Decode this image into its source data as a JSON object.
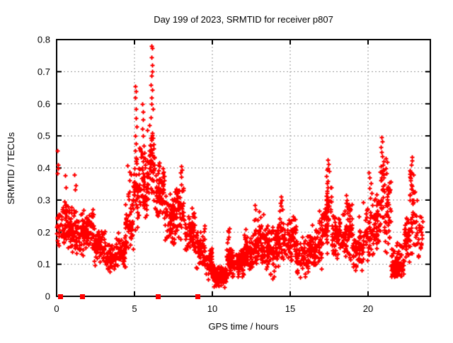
{
  "window": {
    "background": "#ffffff"
  },
  "chart_data": {
    "type": "scatter",
    "title": "Day 199 of 2023, SRMTID for receiver p807",
    "xlabel": "GPS time / hours",
    "ylabel": "SRMTID / TECUs",
    "xlim": [
      0,
      24
    ],
    "ylim": [
      0,
      0.8
    ],
    "xticks": [
      0,
      5,
      10,
      15,
      20
    ],
    "yticks": [
      0,
      0.1,
      0.2,
      0.3,
      0.4,
      0.5,
      0.6,
      0.7,
      0.8
    ],
    "grid": true,
    "legend": "none",
    "marker": {
      "glyph": "plus",
      "color": "#ff0000",
      "size": 7,
      "stroke": 2
    },
    "baseline_marker": {
      "glyph": "filled-square",
      "color": "#ff0000",
      "size": 7
    },
    "baseline_events_x": [
      0.27,
      1.68,
      6.5,
      9.05
    ],
    "grid_color": "#9e9e9e",
    "axis_color": "#000000",
    "outlier_points": [
      [
        0.05,
        0.455
      ],
      [
        0.07,
        0.41
      ],
      [
        0.1,
        0.398
      ],
      [
        0.06,
        0.383
      ],
      [
        0.55,
        0.377
      ],
      [
        0.57,
        0.34
      ],
      [
        1.15,
        0.38
      ],
      [
        1.22,
        0.345
      ],
      [
        1.19,
        0.333
      ],
      [
        5.05,
        0.655
      ],
      [
        5.08,
        0.64
      ],
      [
        5.04,
        0.62
      ],
      [
        5.1,
        0.585
      ],
      [
        5.07,
        0.555
      ],
      [
        5.12,
        0.53
      ],
      [
        5.06,
        0.5
      ],
      [
        5.11,
        0.475
      ],
      [
        5.04,
        0.455
      ],
      [
        5.09,
        0.432
      ],
      [
        5.5,
        0.6
      ],
      [
        5.53,
        0.575
      ],
      [
        5.56,
        0.55
      ],
      [
        5.5,
        0.523
      ],
      [
        5.54,
        0.5
      ],
      [
        5.57,
        0.47
      ],
      [
        5.51,
        0.444
      ],
      [
        5.55,
        0.42
      ],
      [
        6.1,
        0.78
      ],
      [
        6.13,
        0.773
      ],
      [
        6.08,
        0.745
      ],
      [
        6.12,
        0.72
      ],
      [
        6.15,
        0.7
      ],
      [
        6.09,
        0.688
      ],
      [
        6.05,
        0.66
      ],
      [
        6.14,
        0.643
      ],
      [
        6.07,
        0.62
      ],
      [
        6.11,
        0.6
      ],
      [
        6.16,
        0.583
      ],
      [
        6.06,
        0.558
      ],
      [
        7.98,
        0.405
      ],
      [
        8.04,
        0.394
      ],
      [
        7.94,
        0.385
      ],
      [
        8.01,
        0.373
      ],
      [
        12.72,
        0.285
      ],
      [
        12.78,
        0.27
      ],
      [
        13.0,
        0.265
      ],
      [
        13.25,
        0.255
      ],
      [
        14.4,
        0.31
      ],
      [
        14.45,
        0.3
      ],
      [
        14.38,
        0.292
      ],
      [
        14.43,
        0.282
      ],
      [
        14.48,
        0.27
      ],
      [
        15.18,
        0.25
      ],
      [
        15.22,
        0.24
      ],
      [
        17.42,
        0.425
      ],
      [
        17.46,
        0.413
      ],
      [
        17.39,
        0.4
      ],
      [
        17.49,
        0.39
      ],
      [
        18.6,
        0.315
      ],
      [
        18.65,
        0.3
      ],
      [
        18.57,
        0.29
      ],
      [
        19.42,
        0.25
      ],
      [
        20.05,
        0.385
      ],
      [
        20.11,
        0.37
      ],
      [
        20.16,
        0.353
      ],
      [
        20.08,
        0.338
      ],
      [
        20.21,
        0.322
      ],
      [
        20.13,
        0.307
      ],
      [
        20.85,
        0.495
      ],
      [
        20.89,
        0.483
      ],
      [
        20.82,
        0.465
      ],
      [
        20.87,
        0.449
      ],
      [
        20.91,
        0.437
      ],
      [
        21.15,
        0.43
      ],
      [
        21.21,
        0.418
      ],
      [
        21.12,
        0.4
      ],
      [
        21.18,
        0.383
      ],
      [
        22.8,
        0.435
      ],
      [
        22.84,
        0.423
      ],
      [
        22.77,
        0.41
      ],
      [
        23.15,
        0.3
      ],
      [
        23.3,
        0.25
      ],
      [
        23.35,
        0.21
      ],
      [
        23.4,
        0.165
      ]
    ],
    "density_clusters": [
      [
        0.0,
        0.35,
        0.14,
        0.31,
        28,
        "mid"
      ],
      [
        0.35,
        1.0,
        0.13,
        0.3,
        70,
        "mid"
      ],
      [
        1.0,
        1.7,
        0.11,
        0.28,
        72,
        "mid"
      ],
      [
        1.7,
        2.4,
        0.12,
        0.28,
        72,
        "mid"
      ],
      [
        2.4,
        3.1,
        0.085,
        0.22,
        70,
        "mid"
      ],
      [
        3.1,
        3.8,
        0.065,
        0.17,
        70,
        "mid"
      ],
      [
        3.8,
        4.4,
        0.08,
        0.2,
        56,
        "mid"
      ],
      [
        4.4,
        4.9,
        0.12,
        0.31,
        50,
        "mid"
      ],
      [
        4.55,
        4.8,
        0.3,
        0.44,
        8,
        "uni"
      ],
      [
        4.9,
        5.3,
        0.19,
        0.46,
        46,
        "mid"
      ],
      [
        5.3,
        5.8,
        0.24,
        0.48,
        50,
        "mid"
      ],
      [
        5.8,
        6.3,
        0.27,
        0.55,
        58,
        "mid"
      ],
      [
        6.3,
        6.9,
        0.22,
        0.43,
        72,
        "mid"
      ],
      [
        6.9,
        7.6,
        0.15,
        0.34,
        70,
        "mid"
      ],
      [
        7.6,
        8.2,
        0.17,
        0.38,
        56,
        "mid"
      ],
      [
        8.2,
        8.9,
        0.12,
        0.29,
        64,
        "mid"
      ],
      [
        8.9,
        9.5,
        0.08,
        0.23,
        64,
        "mid"
      ],
      [
        9.5,
        10.0,
        0.05,
        0.16,
        58,
        "mid"
      ],
      [
        10.0,
        10.9,
        0.025,
        0.1,
        112,
        "mid"
      ],
      [
        10.9,
        11.3,
        0.05,
        0.16,
        54,
        "mid"
      ],
      [
        10.95,
        11.1,
        0.13,
        0.215,
        6,
        "uni"
      ],
      [
        11.3,
        12.0,
        0.055,
        0.15,
        76,
        "mid"
      ],
      [
        12.0,
        12.6,
        0.07,
        0.19,
        70,
        "mid"
      ],
      [
        12.05,
        12.2,
        0.16,
        0.22,
        5,
        "uni"
      ],
      [
        12.6,
        13.4,
        0.08,
        0.26,
        82,
        "mid"
      ],
      [
        13.4,
        14.1,
        0.05,
        0.24,
        80,
        "mid"
      ],
      [
        14.1,
        14.6,
        0.09,
        0.27,
        54,
        "mid"
      ],
      [
        14.6,
        15.4,
        0.09,
        0.25,
        76,
        "mid"
      ],
      [
        15.4,
        16.2,
        0.055,
        0.19,
        76,
        "mid"
      ],
      [
        16.2,
        17.0,
        0.08,
        0.23,
        76,
        "mid"
      ],
      [
        16.85,
        17.0,
        0.2,
        0.27,
        5,
        "uni"
      ],
      [
        17.0,
        17.4,
        0.12,
        0.3,
        44,
        "mid"
      ],
      [
        17.3,
        17.65,
        0.2,
        0.4,
        30,
        "mid"
      ],
      [
        17.65,
        18.4,
        0.1,
        0.27,
        70,
        "mid"
      ],
      [
        18.4,
        19.0,
        0.1,
        0.315,
        60,
        "mid"
      ],
      [
        19.0,
        19.7,
        0.065,
        0.22,
        66,
        "mid"
      ],
      [
        19.7,
        20.4,
        0.1,
        0.3,
        60,
        "mid"
      ],
      [
        20.4,
        20.78,
        0.13,
        0.34,
        40,
        "mid"
      ],
      [
        20.78,
        21.0,
        0.17,
        0.46,
        26,
        "mid"
      ],
      [
        21.0,
        21.45,
        0.12,
        0.385,
        46,
        "mid"
      ],
      [
        21.45,
        22.3,
        0.06,
        0.18,
        92,
        "low"
      ],
      [
        22.3,
        22.65,
        0.1,
        0.26,
        40,
        "mid"
      ],
      [
        22.65,
        23.0,
        0.22,
        0.42,
        30,
        "mid"
      ],
      [
        22.65,
        23.0,
        0.12,
        0.24,
        12,
        "uni"
      ],
      [
        23.0,
        23.5,
        0.12,
        0.3,
        26,
        "mid"
      ]
    ]
  }
}
